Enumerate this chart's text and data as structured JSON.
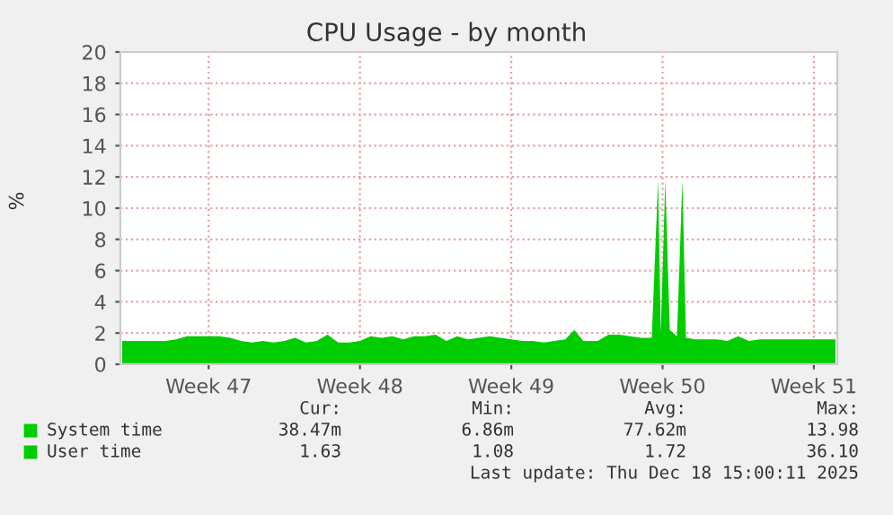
{
  "chart_data": {
    "type": "area",
    "stacked": true,
    "title": "CPU Usage - by month",
    "ylabel": "%",
    "x": [
      "2025-11-16T12:00",
      "2025-11-17T00:00",
      "2025-11-17T12:00",
      "2025-11-18T00:00",
      "2025-11-18T12:00",
      "2025-11-19T00:00",
      "2025-11-19T12:00",
      "2025-11-20T00:00",
      "2025-11-20T12:00",
      "2025-11-21T00:00",
      "2025-11-21T12:00",
      "2025-11-22T00:00",
      "2025-11-22T12:00",
      "2025-11-23T00:00",
      "2025-11-23T12:00",
      "2025-11-24T00:00",
      "2025-11-24T12:00",
      "2025-11-25T00:00",
      "2025-11-25T12:00",
      "2025-11-26T00:00",
      "2025-11-26T12:00",
      "2025-11-27T00:00",
      "2025-11-27T12:00",
      "2025-11-28T00:00",
      "2025-11-28T12:00",
      "2025-11-29T00:00",
      "2025-11-29T12:00",
      "2025-11-30T00:00",
      "2025-11-30T12:00",
      "2025-12-01T00:00",
      "2025-12-01T12:00",
      "2025-12-02T00:00",
      "2025-12-02T12:00",
      "2025-12-03T00:00",
      "2025-12-03T12:00",
      "2025-12-04T00:00",
      "2025-12-04T12:00",
      "2025-12-05T00:00",
      "2025-12-05T12:00",
      "2025-12-06T00:00",
      "2025-12-06T12:00",
      "2025-12-07T00:00",
      "2025-12-07T10:00",
      "2025-12-07T20:00",
      "2025-12-08T12:00",
      "2025-12-09T00:00",
      "2025-12-09T12:00",
      "2025-12-10T00:00",
      "2025-12-10T12:00",
      "2025-12-11T00:00",
      "2025-12-11T07:00",
      "2025-12-11T10:00",
      "2025-12-11T15:00",
      "2025-12-11T20:00",
      "2025-12-12T04:00",
      "2025-12-12T10:00",
      "2025-12-12T14:00",
      "2025-12-13T00:00",
      "2025-12-13T12:00",
      "2025-12-14T00:00",
      "2025-12-14T12:00",
      "2025-12-15T00:00",
      "2025-12-15T12:00",
      "2025-12-16T00:00",
      "2025-12-16T12:00",
      "2025-12-17T00:00",
      "2025-12-17T12:00",
      "2025-12-18T00:00",
      "2025-12-18T12:00",
      "2025-12-19T00:00",
      "2025-12-19T12:00"
    ],
    "series": [
      {
        "name": "System time",
        "color": "#00cc00",
        "values": [
          0.1,
          0.1,
          0.1,
          0.1,
          0.1,
          0.1,
          0.1,
          0.1,
          0.1,
          0.1,
          0.1,
          0.1,
          0.1,
          0.1,
          0.1,
          0.1,
          0.1,
          0.1,
          0.1,
          0.1,
          0.1,
          0.1,
          0.1,
          0.1,
          0.1,
          0.1,
          0.1,
          0.1,
          0.1,
          0.1,
          0.1,
          0.1,
          0.1,
          0.1,
          0.1,
          0.1,
          0.1,
          0.1,
          0.1,
          0.1,
          0.1,
          0.1,
          0.1,
          0.1,
          0.1,
          0.1,
          0.1,
          0.1,
          0.1,
          0.1,
          0.1,
          0.1,
          0.1,
          0.1,
          0.1,
          0.1,
          0.1,
          0.1,
          0.1,
          0.1,
          0.1,
          0.1,
          0.1,
          0.1,
          0.1,
          0.1,
          0.1,
          0.1,
          0.1,
          0.1,
          0.1
        ]
      },
      {
        "name": "User time",
        "color": "#00cc00",
        "values": [
          1.4,
          1.4,
          1.4,
          1.4,
          1.4,
          1.5,
          1.7,
          1.7,
          1.7,
          1.7,
          1.6,
          1.4,
          1.3,
          1.4,
          1.3,
          1.4,
          1.6,
          1.3,
          1.4,
          1.8,
          1.3,
          1.3,
          1.4,
          1.7,
          1.6,
          1.7,
          1.5,
          1.7,
          1.7,
          1.8,
          1.4,
          1.7,
          1.5,
          1.6,
          1.7,
          1.6,
          1.5,
          1.4,
          1.4,
          1.3,
          1.4,
          1.5,
          2.1,
          1.4,
          1.4,
          1.8,
          1.8,
          1.7,
          1.6,
          1.6,
          11.7,
          1.9,
          11.7,
          2.1,
          1.7,
          11.7,
          1.6,
          1.5,
          1.5,
          1.5,
          1.4,
          1.7,
          1.4,
          1.5,
          1.5,
          1.5,
          1.5,
          1.5,
          1.5,
          1.5,
          1.5
        ]
      }
    ],
    "xlim": [
      "2025-11-16T10:00",
      "2025-12-19T14:00"
    ],
    "xticks": [
      {
        "value": "2025-11-20T12:00",
        "label": "Week 47"
      },
      {
        "value": "2025-11-27T12:00",
        "label": "Week 48"
      },
      {
        "value": "2025-12-04T12:00",
        "label": "Week 49"
      },
      {
        "value": "2025-12-11T12:00",
        "label": "Week 50"
      },
      {
        "value": "2025-12-18T12:00",
        "label": "Week 51"
      }
    ],
    "ylim": [
      0,
      20
    ],
    "yticks": [
      0,
      2,
      4,
      6,
      8,
      10,
      12,
      14,
      16,
      18,
      20
    ],
    "grid": true,
    "legend": "bottom left",
    "annotations": [
      "Cur:",
      "Min:",
      "Avg:",
      "Max:",
      "38.47m",
      "6.86m",
      "77.62m",
      "13.98",
      "1.63",
      "1.08",
      "1.72",
      "36.10",
      "Last update: Thu Dec 18 15:00:11 2025"
    ]
  }
}
